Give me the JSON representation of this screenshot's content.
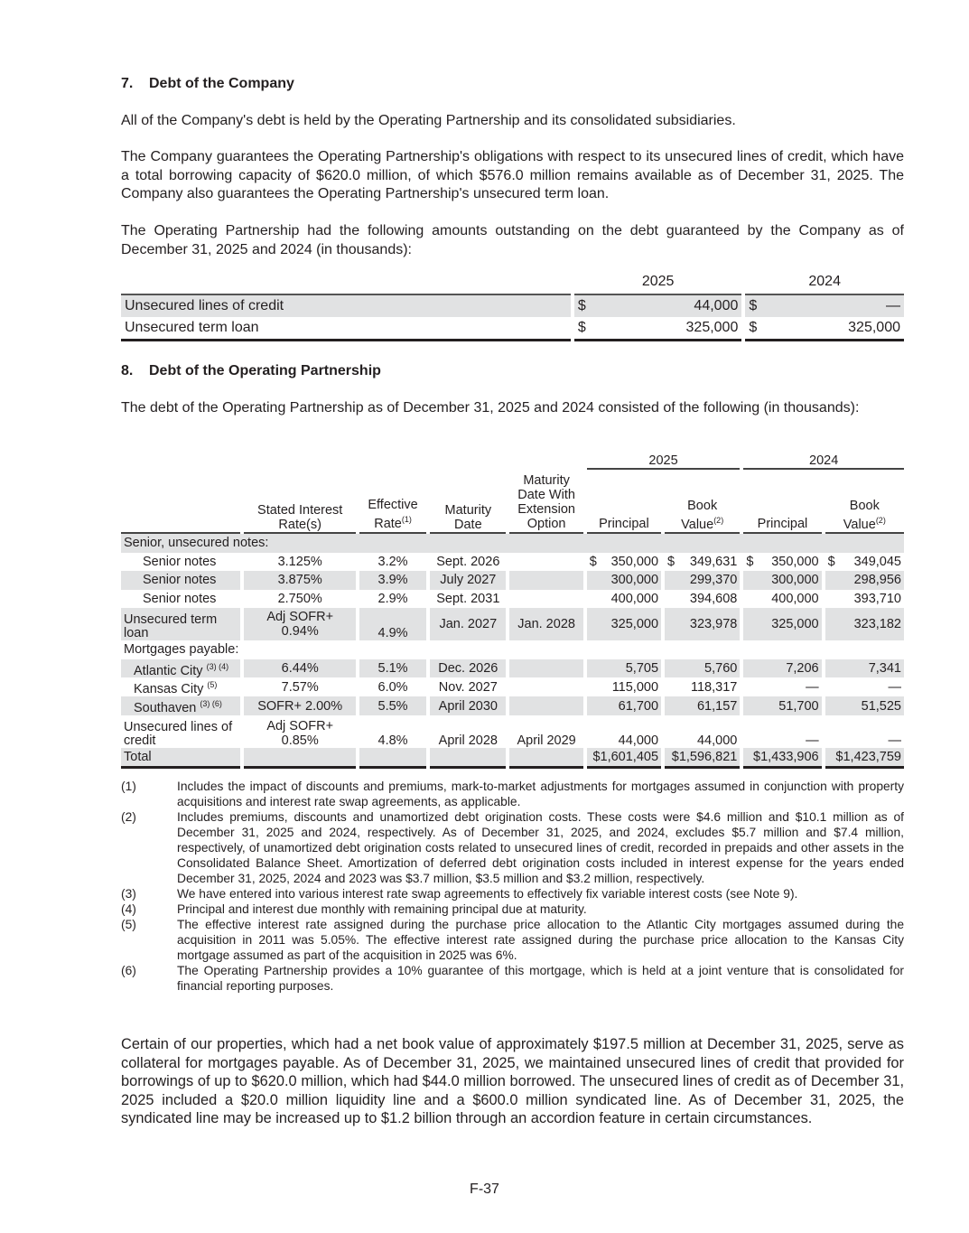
{
  "section7": {
    "heading_num": "7.",
    "heading": "Debt of the Company",
    "para1": "All of the Company's debt is held by the Operating Partnership and its consolidated subsidiaries.",
    "para2": "The Company guarantees the Operating Partnership's obligations with respect to its unsecured lines of credit, which have a total borrowing capacity of $620.0 million, of which $576.0 million remains available as of December 31, 2025. The Company also guarantees the Operating Partnership's unsecured term loan.",
    "para3": "The Operating Partnership had the following amounts outstanding on the debt guaranteed by the Company as of December 31, 2025 and 2024 (in thousands):",
    "table": {
      "years": [
        "2025",
        "2024"
      ],
      "rows": [
        {
          "label": "Unsecured lines of credit",
          "cur": "$",
          "v2025": "44,000",
          "v2024": "—"
        },
        {
          "label": "Unsecured term loan",
          "cur": "$",
          "v2025": "325,000",
          "v2024": "325,000"
        }
      ]
    }
  },
  "section8": {
    "heading_num": "8.",
    "heading": "Debt of the Operating Partnership",
    "para1": "The debt of the Operating Partnership as of December 31, 2025 and 2024 consisted of the following (in thousands):",
    "table": {
      "years": [
        "2025",
        "2024"
      ],
      "headers": {
        "stated": "Stated Interest Rate(s)",
        "effective": "Effective Rate",
        "effective_sup": "(1)",
        "maturity": "Maturity Date",
        "extension": "Maturity Date With Extension Option",
        "principal": "Principal",
        "book": "Book Value",
        "book_sup": "(2)"
      },
      "rows": [
        {
          "type": "group",
          "label": "Senior, unsecured notes:"
        },
        {
          "label": "Senior notes",
          "stated": "3.125%",
          "effective": "3.2%",
          "maturity": "Sept. 2026",
          "extension": "",
          "p2025": "350,000",
          "b2025": "349,631",
          "p2024": "350,000",
          "b2024": "349,045",
          "dollar": true
        },
        {
          "label": "Senior notes",
          "stated": "3.875%",
          "effective": "3.9%",
          "maturity": "July 2027",
          "extension": "",
          "p2025": "300,000",
          "b2025": "299,370",
          "p2024": "300,000",
          "b2024": "298,956"
        },
        {
          "label": "Senior notes",
          "stated": "2.750%",
          "effective": "2.9%",
          "maturity": "Sept. 2031",
          "extension": "",
          "p2025": "400,000",
          "b2025": "394,608",
          "p2024": "400,000",
          "b2024": "393,710"
        },
        {
          "type": "tall",
          "label": "Unsecured term loan",
          "stated_prefix": "Adj SOFR+",
          "stated": "0.94%",
          "effective": "4.9%",
          "maturity": "Jan. 2027",
          "extension": "Jan. 2028",
          "p2025": "325,000",
          "b2025": "323,978",
          "p2024": "325,000",
          "b2024": "323,182"
        },
        {
          "type": "group",
          "label": "Mortgages payable:"
        },
        {
          "label": "Atlantic City",
          "sup": "(3) (4)",
          "stated": "6.44%",
          "effective": "5.1%",
          "maturity": "Dec. 2026",
          "extension": "",
          "p2025": "5,705",
          "b2025": "5,760",
          "p2024": "7,206",
          "b2024": "7,341",
          "indent": 2
        },
        {
          "label": "Kansas City",
          "sup": "(5)",
          "stated": "7.57%",
          "effective": "6.0%",
          "maturity": "Nov. 2027",
          "extension": "",
          "p2025": "115,000",
          "b2025": "118,317",
          "p2024": "—",
          "b2024": "—",
          "indent": 2
        },
        {
          "label": "Southaven",
          "sup": "(3) (6)",
          "stated": "SOFR+ 2.00%",
          "effective": "5.5%",
          "maturity": "April 2030",
          "extension": "",
          "p2025": "61,700",
          "b2025": "61,157",
          "p2024": "51,700",
          "b2024": "51,525",
          "indent": 2
        },
        {
          "type": "tall",
          "label": "Unsecured lines of credit",
          "stated_prefix": "Adj SOFR+",
          "stated": "0.85%",
          "effective": "4.8%",
          "maturity": "April 2028",
          "extension": "April 2029",
          "p2025": "44,000",
          "b2025": "44,000",
          "p2024": "—",
          "b2024": "—"
        },
        {
          "type": "total",
          "label": "Total",
          "p2025": "$1,601,405",
          "b2025": "$1,596,821",
          "p2024": "$1,433,906",
          "b2024": "$1,423,759"
        }
      ]
    },
    "footnotes": [
      {
        "n": "(1)",
        "text": "Includes the impact of discounts and premiums, mark-to-market adjustments for mortgages assumed in conjunction with property acquisitions and interest rate swap agreements, as applicable."
      },
      {
        "n": "(2)",
        "text": "Includes premiums, discounts and unamortized debt origination costs. These costs were $4.6 million and $10.1 million as of December 31, 2025 and 2024, respectively. As of December 31, 2025, and 2024, excludes $5.7 million and $7.4 million, respectively, of unamortized debt origination costs related to unsecured lines of credit, recorded in prepaids and other assets in the Consolidated Balance Sheet. Amortization of deferred debt origination costs included in interest expense for the years ended December 31, 2025, 2024 and 2023 was $3.7 million, $3.5 million and $3.2 million, respectively."
      },
      {
        "n": "(3)",
        "text": "We have entered into various interest rate swap agreements to effectively fix variable interest costs (see Note 9)."
      },
      {
        "n": "(4)",
        "text": "Principal and interest due monthly with remaining principal due at maturity."
      },
      {
        "n": "(5)",
        "text": "The effective interest rate assigned during the purchase price allocation to the Atlantic City mortgages assumed during the acquisition in 2011 was 5.05%. The effective interest rate assigned during the purchase price allocation to the Kansas City mortgage assumed as part of the acquisition in 2025 was 6%."
      },
      {
        "n": "(6)",
        "text": "The Operating Partnership provides a 10% guarantee of this mortgage, which is held at a joint venture that is consolidated for financial reporting purposes."
      }
    ],
    "para2": "Certain of our properties, which had a net book value of approximately $197.5 million at December 31, 2025, serve as collateral for mortgages payable. As of December 31, 2025, we maintained unsecured lines of credit that provided for borrowings of up to $620.0 million, which had $44.0 million borrowed. The unsecured lines of credit as of December 31, 2025 included a $20.0 million liquidity line and a $600.0 million syndicated line. As of December 31, 2025, the syndicated line may be increased up to $1.2 billion through an accordion feature in certain circumstances."
  },
  "page_number": "F-37"
}
